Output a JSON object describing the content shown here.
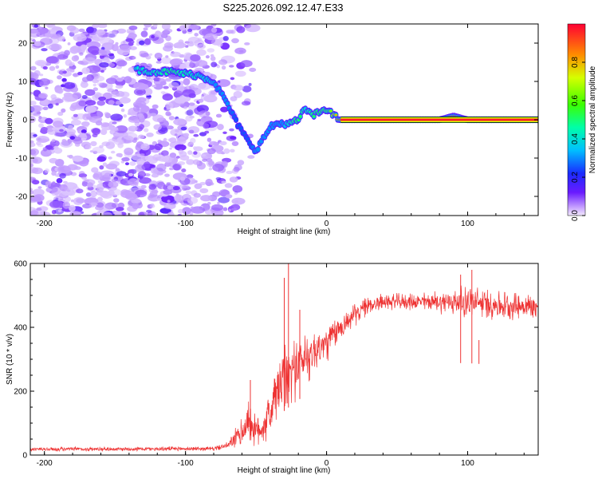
{
  "title": "S225.2026.092.12.47.E33",
  "chart_data": [
    {
      "type": "heatmap",
      "name": "spectrogram",
      "xlabel": "Height of straight line (km)",
      "ylabel": "Frequency (Hz)",
      "xlim": [
        -210,
        150
      ],
      "ylim": [
        -25,
        25
      ],
      "xticks": [
        -200,
        -100,
        0,
        100
      ],
      "yticks": [
        -20,
        -10,
        0,
        10,
        20
      ],
      "colorbar": {
        "label": "Normalized spectral amplitude",
        "range": [
          0,
          1
        ],
        "ticks": [
          0.0,
          0.2,
          0.4,
          0.6,
          0.8
        ]
      },
      "ridge": {
        "x": [
          -135,
          -120,
          -110,
          -100,
          -90,
          -80,
          -75,
          -70,
          -65,
          -60,
          -55,
          -50,
          -45,
          -40,
          -35,
          -30,
          -25,
          -20,
          -15,
          -10,
          -5,
          0,
          5,
          10,
          20,
          40,
          60,
          80,
          90,
          100,
          120,
          150
        ],
        "freq": [
          13,
          12.5,
          12.5,
          12,
          11.5,
          10,
          7,
          4,
          0,
          -3,
          -6,
          -8,
          -5,
          -2,
          -1,
          -1,
          -1,
          0,
          3,
          1,
          2,
          3,
          1,
          0,
          0,
          0,
          0,
          0,
          1,
          0,
          0,
          0
        ],
        "amplitude": [
          0.4,
          0.45,
          0.5,
          0.45,
          0.4,
          0.35,
          0.3,
          0.3,
          0.25,
          0.25,
          0.25,
          0.3,
          0.3,
          0.3,
          0.3,
          0.35,
          0.45,
          0.55,
          0.4,
          0.5,
          0.55,
          0.5,
          0.75,
          0.9,
          0.95,
          0.95,
          0.95,
          0.95,
          0.95,
          0.95,
          0.95,
          0.95
        ]
      },
      "noise_region_x": [
        -210,
        -70
      ]
    },
    {
      "type": "line",
      "name": "snr",
      "xlabel": "Height of straight line (km)",
      "ylabel": "SNR (10 * v/v)",
      "xlim": [
        -210,
        150
      ],
      "ylim": [
        0,
        600
      ],
      "xticks": [
        -200,
        -100,
        0,
        100
      ],
      "yticks": [
        0,
        200,
        400,
        600
      ],
      "color": "#ee3333",
      "envelope": {
        "x": [
          -210,
          -80,
          -70,
          -60,
          -55,
          -50,
          -45,
          -40,
          -35,
          -30,
          -25,
          -20,
          -10,
          0,
          10,
          20,
          30,
          40,
          60,
          80,
          100,
          120,
          150
        ],
        "mean": [
          18,
          20,
          30,
          70,
          110,
          70,
          90,
          130,
          200,
          230,
          260,
          290,
          320,
          350,
          400,
          440,
          470,
          480,
          480,
          480,
          480,
          470,
          465
        ],
        "spread": [
          8,
          8,
          12,
          60,
          80,
          60,
          70,
          90,
          120,
          130,
          130,
          110,
          90,
          70,
          50,
          40,
          35,
          30,
          30,
          40,
          60,
          55,
          45
        ]
      },
      "spikes": [
        {
          "x": -54,
          "y": 235
        },
        {
          "x": -27,
          "y": 600
        },
        {
          "x": -30,
          "y": 555
        },
        {
          "x": -19,
          "y": 455
        },
        {
          "x": 95,
          "y": 565
        },
        {
          "x": 103,
          "y": 580
        },
        {
          "x": 108,
          "y": 360
        }
      ]
    }
  ]
}
